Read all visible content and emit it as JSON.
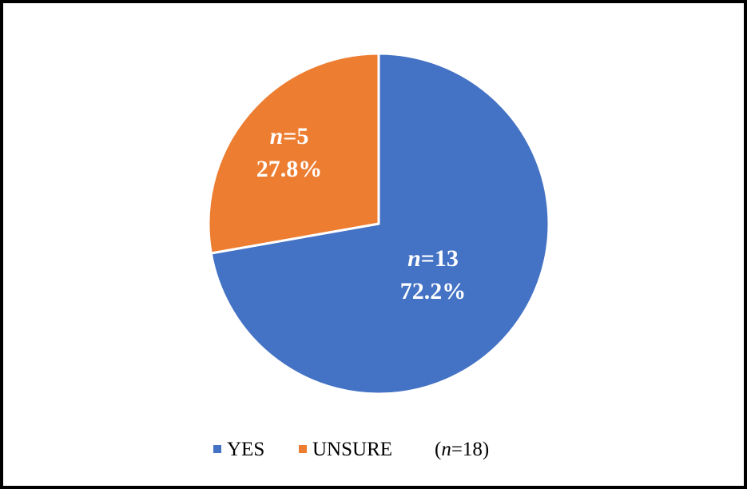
{
  "chart_data": {
    "type": "pie",
    "slices": [
      {
        "label": "YES",
        "value": 13,
        "percent": "72.2%",
        "count_text": "=13",
        "color": "#4472C4"
      },
      {
        "label": "UNSURE",
        "value": 5,
        "percent": "27.8%",
        "count_text": "=5",
        "color": "#ED7D31"
      }
    ],
    "n_symbol": "n",
    "total_note": {
      "open": "(",
      "n": "n",
      "rest": "=18)"
    },
    "legend_position": "bottom",
    "start_angle_deg": 0,
    "direction": "clockwise"
  }
}
